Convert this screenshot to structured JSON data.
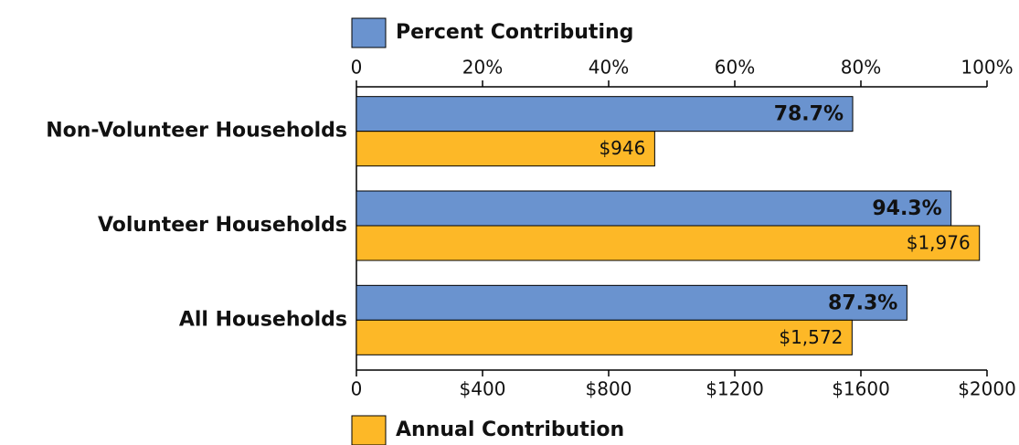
{
  "chart_data": {
    "type": "bar",
    "orientation": "horizontal",
    "categories": [
      "Non-Volunteer Households",
      "Volunteer Households",
      "All Households"
    ],
    "series": [
      {
        "name": "Percent Contributing",
        "color": "#6a93cf",
        "values": [
          78.7,
          94.3,
          87.3
        ],
        "value_labels": [
          "78.7%",
          "94.3%",
          "87.3%"
        ]
      },
      {
        "name": "Annual Contribution",
        "color": "#fdb827",
        "axis": "x2",
        "values": [
          946,
          1976,
          1572
        ],
        "value_labels": [
          "$946",
          "$1,976",
          "$1,572"
        ]
      }
    ],
    "xlim": [
      0,
      100
    ],
    "xticks": [
      0,
      {
        "value": 20,
        "label": "20%"
      },
      {
        "value": 40,
        "label": "40%"
      },
      {
        "value": 60,
        "label": "60%"
      },
      {
        "value": 80,
        "label": "80%"
      },
      {
        "value": 100,
        "label": "100%"
      }
    ],
    "x2lim": [
      0,
      2000
    ],
    "x2ticks": [
      0,
      {
        "value": 400,
        "label": "$400"
      },
      {
        "value": 800,
        "label": "$800"
      },
      {
        "value": 1200,
        "label": "$1200"
      },
      {
        "value": 1600,
        "label": "$1600"
      },
      {
        "value": 2000,
        "label": "$2000"
      }
    ]
  }
}
